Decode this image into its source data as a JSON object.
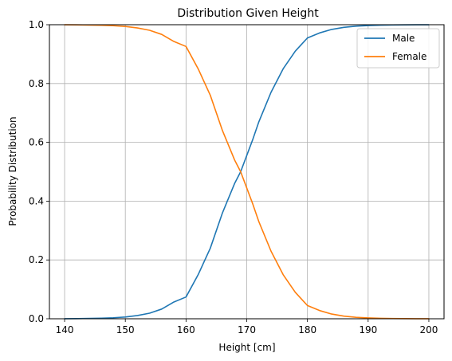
{
  "chart_data": {
    "type": "line",
    "title": "Distribution Given Height",
    "xlabel": "Height [cm]",
    "ylabel": "Probability Distribution",
    "xlim": [
      137.5,
      202.5
    ],
    "ylim": [
      0.0,
      1.0
    ],
    "xticks": [
      140,
      150,
      160,
      170,
      180,
      190,
      200
    ],
    "xtick_labels": [
      "140",
      "150",
      "160",
      "170",
      "180",
      "190",
      "200"
    ],
    "yticks": [
      0.0,
      0.2,
      0.4,
      0.6,
      0.8,
      1.0
    ],
    "ytick_labels": [
      "0.0",
      "0.2",
      "0.4",
      "0.6",
      "0.8",
      "1.0"
    ],
    "grid": true,
    "legend_position": "top-right",
    "x": [
      140,
      142,
      144,
      146,
      148,
      150,
      152,
      154,
      156,
      158,
      160,
      162,
      164,
      166,
      168,
      169,
      170,
      171,
      172,
      174,
      176,
      178,
      180,
      182,
      184,
      186,
      188,
      190,
      192,
      194,
      196,
      198,
      200
    ],
    "series": [
      {
        "name": "Male",
        "color": "#1f77b4",
        "values": [
          0.0003,
          0.0006,
          0.0011,
          0.0019,
          0.0034,
          0.006,
          0.011,
          0.019,
          0.033,
          0.057,
          0.074,
          0.15,
          0.24,
          0.36,
          0.46,
          0.5,
          0.555,
          0.61,
          0.67,
          0.77,
          0.85,
          0.91,
          0.955,
          0.972,
          0.984,
          0.991,
          0.995,
          0.997,
          0.9985,
          0.9992,
          0.9996,
          0.9998,
          0.9999
        ]
      },
      {
        "name": "Female",
        "color": "#ff7f0e",
        "values": [
          0.9997,
          0.9994,
          0.9989,
          0.9981,
          0.9966,
          0.994,
          0.989,
          0.981,
          0.967,
          0.943,
          0.926,
          0.85,
          0.76,
          0.64,
          0.54,
          0.5,
          0.445,
          0.39,
          0.33,
          0.23,
          0.15,
          0.09,
          0.045,
          0.028,
          0.016,
          0.009,
          0.005,
          0.003,
          0.0015,
          0.0008,
          0.0004,
          0.0002,
          0.0001
        ]
      }
    ]
  }
}
